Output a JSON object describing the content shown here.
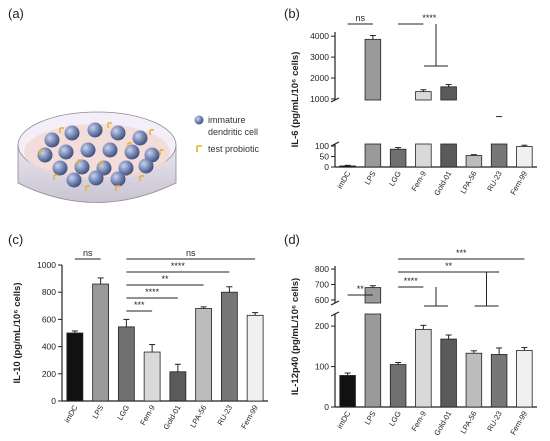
{
  "figure": {
    "panel_a": {
      "label": "(a)",
      "legend": [
        {
          "icon": "dendritic-cell-icon",
          "text": "immature"
        },
        {
          "icon": "",
          "text": "dendritic cell"
        },
        {
          "icon": "probiotic-icon",
          "text": "test probiotic"
        }
      ]
    }
  },
  "colors": {
    "imDC": "#111111",
    "LPS": "#9a9a9a",
    "LGG": "#6f6f6f",
    "Fem-9": "#d9d9d9",
    "Gold-01": "#5a5a5a",
    "LPA-56": "#bcbcbc",
    "RU-23": "#777777",
    "Fem-99": "#f0f0f0"
  },
  "chart_data": [
    {
      "panel": "(b)",
      "type": "bar",
      "categories": [
        "imDC",
        "LPS",
        "LGG",
        "Fem-9",
        "Gold-01",
        "LPA-56",
        "RU-23",
        "Fem-99"
      ],
      "values": [
        5,
        3850,
        85,
        1350,
        1580,
        55,
        148,
        98
      ],
      "errors": [
        3,
        180,
        8,
        90,
        110,
        4,
        10,
        6
      ],
      "ylabel": "IL-6 (pg/mL/10⁶ cells)",
      "broken_axis": true,
      "lower_ticks": [
        0,
        50,
        100
      ],
      "upper_ticks": [
        1000,
        2000,
        3000,
        4000
      ],
      "ylim_lower": [
        0,
        110
      ],
      "ylim_upper": [
        950,
        4200
      ],
      "annotations": [
        {
          "text": "ns"
        },
        {
          "text": "****"
        }
      ]
    },
    {
      "panel": "(c)",
      "type": "bar",
      "categories": [
        "imDC",
        "LPS",
        "LGG",
        "Fem-9",
        "Gold-01",
        "LPA-56",
        "RU-23",
        "Fem-99"
      ],
      "values": [
        500,
        860,
        545,
        360,
        215,
        680,
        800,
        630
      ],
      "errors": [
        15,
        45,
        55,
        55,
        55,
        12,
        40,
        20
      ],
      "ylabel": "IL-10 (pg/mL/10⁶ cells)",
      "yticks": [
        0,
        200,
        400,
        600,
        800,
        1000
      ],
      "ylim": [
        0,
        1000
      ],
      "annotations": [
        {
          "text": "ns"
        },
        {
          "text": "ns"
        },
        {
          "text": "****"
        },
        {
          "text": "**"
        },
        {
          "text": "****"
        },
        {
          "text": "***"
        }
      ]
    },
    {
      "panel": "(d)",
      "type": "bar",
      "categories": [
        "imDC",
        "LPS",
        "LGG",
        "Fem-9",
        "Gold-01",
        "LPA-56",
        "RU-23",
        "Fem-99"
      ],
      "values": [
        78,
        680,
        105,
        192,
        168,
        133,
        130,
        140
      ],
      "errors": [
        6,
        12,
        5,
        10,
        10,
        6,
        16,
        7
      ],
      "ylabel": "IL-12p40 (pg/mL/10⁶ cells)",
      "broken_axis": true,
      "lower_ticks": [
        0,
        100,
        200
      ],
      "upper_ticks": [
        600,
        700,
        800
      ],
      "ylim_lower": [
        0,
        230
      ],
      "ylim_upper": [
        580,
        820
      ],
      "annotations": [
        {
          "text": "***"
        },
        {
          "text": "**"
        },
        {
          "text": "**"
        },
        {
          "text": "****"
        }
      ]
    }
  ]
}
